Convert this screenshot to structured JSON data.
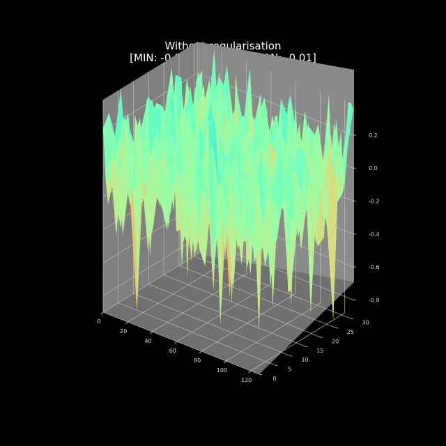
{
  "chart_data": {
    "type": "surface3d",
    "title": "Without regularisation",
    "subtitle": "[MIN: -0.9, MAX: 0.39, MEAN: -0.01]",
    "stats": {
      "min": -0.9,
      "max": 0.39,
      "mean": -0.01
    },
    "xlim": [
      0,
      127
    ],
    "ylim": [
      0,
      31
    ],
    "zlim": [
      -0.9,
      0.39
    ],
    "x_ticks": [
      "0",
      "20",
      "40",
      "60",
      "80",
      "100",
      "120"
    ],
    "y_ticks": [
      "0",
      "5",
      "10",
      "15",
      "20",
      "25",
      "30"
    ],
    "z_ticks": [
      "0.2",
      "0.0",
      "-0.2",
      "-0.4",
      "-0.6",
      "-0.8"
    ],
    "z_tick_values": [
      0.2,
      0.0,
      -0.2,
      -0.4,
      -0.6,
      -0.8
    ],
    "colormap": "rainbow",
    "colors": {
      "background": "#000000",
      "pane": "#7f7f7f",
      "grid": "#bfbfbf",
      "text": "#ffffff"
    },
    "grid": true
  }
}
